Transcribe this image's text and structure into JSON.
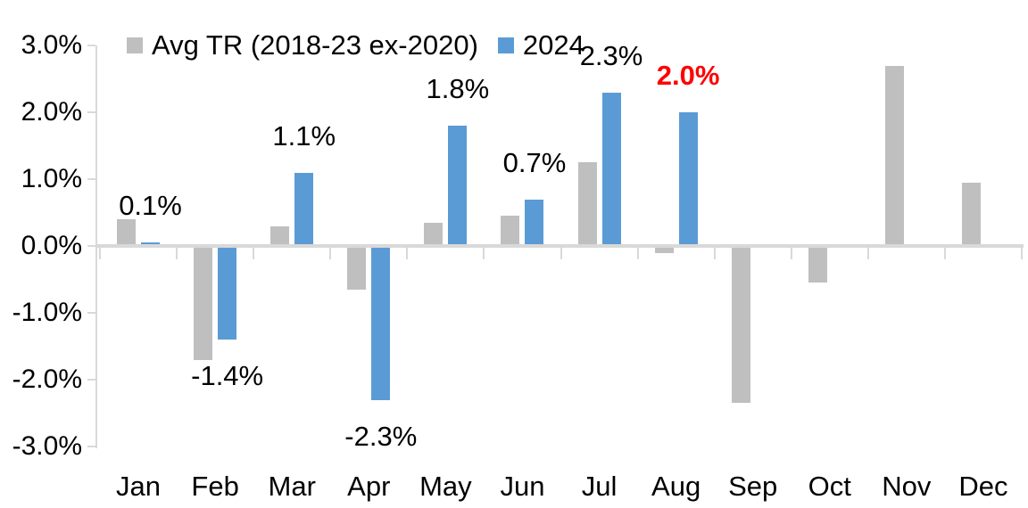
{
  "chart_data": {
    "type": "bar",
    "title": "",
    "xlabel": "",
    "ylabel": "",
    "grid": false,
    "legend_position": "top-left",
    "background_color": "#FFFFFF",
    "axis_color": "#D9D9D9",
    "categories": [
      "Jan",
      "Feb",
      "Mar",
      "Apr",
      "May",
      "Jun",
      "Jul",
      "Aug",
      "Sep",
      "Oct",
      "Nov",
      "Dec"
    ],
    "y_axis": {
      "unit": "%",
      "min": -3.0,
      "max": 3.0,
      "tick_values": [
        3,
        2,
        1,
        0,
        -1,
        -2,
        -3
      ],
      "tick_labels": [
        "3.0%",
        "2.0%",
        "1.0%",
        "0.0%",
        "-1.0%",
        "-2.0%",
        "-3.0%"
      ]
    },
    "series": [
      {
        "name": "Avg TR (2018-23 ex-2020)",
        "color": "#BFBFBF",
        "values": [
          0.4,
          -1.7,
          0.3,
          -0.65,
          0.35,
          0.45,
          1.25,
          -0.1,
          -2.35,
          -0.55,
          2.7,
          0.95
        ],
        "value_labels": [
          null,
          null,
          null,
          null,
          null,
          null,
          null,
          null,
          null,
          null,
          null,
          null
        ]
      },
      {
        "name": "2024",
        "color": "#5B9BD5",
        "values": [
          0.05,
          -1.4,
          1.1,
          -2.3,
          1.8,
          0.7,
          2.3,
          2.0,
          null,
          null,
          null,
          null
        ],
        "value_labels": [
          {
            "text": "0.1%",
            "color": "#000000",
            "bold": false
          },
          {
            "text": "-1.4%",
            "color": "#000000",
            "bold": false
          },
          {
            "text": "1.1%",
            "color": "#000000",
            "bold": false
          },
          {
            "text": "-2.3%",
            "color": "#000000",
            "bold": false
          },
          {
            "text": "1.8%",
            "color": "#000000",
            "bold": false
          },
          {
            "text": "0.7%",
            "color": "#000000",
            "bold": false
          },
          {
            "text": "2.3%",
            "color": "#000000",
            "bold": false
          },
          {
            "text": "2.0%",
            "color": "#FF0000",
            "bold": true
          },
          null,
          null,
          null,
          null
        ]
      }
    ]
  }
}
